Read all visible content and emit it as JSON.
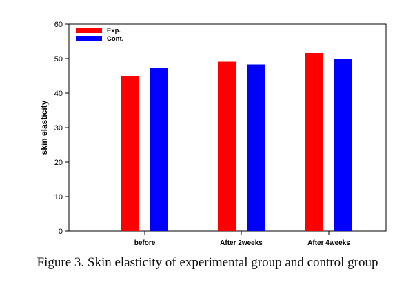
{
  "caption": "Figure 3. Skin elasticity of experimental group and control group",
  "chart_data": {
    "type": "bar",
    "title": "",
    "xlabel": "",
    "ylabel": "skin elasticity",
    "ylim": [
      0,
      60
    ],
    "yticks": [
      0,
      10,
      20,
      30,
      40,
      50,
      60
    ],
    "categories": [
      "before",
      "After 2weeks",
      "After 4weeks"
    ],
    "series": [
      {
        "name": "Exp.",
        "color": "#ff0000",
        "values": [
          45.0,
          49.1,
          51.6
        ]
      },
      {
        "name": "Cont.",
        "color": "#0000ff",
        "values": [
          47.2,
          48.3,
          49.9
        ]
      }
    ],
    "legend": "top-left",
    "grid": false
  }
}
